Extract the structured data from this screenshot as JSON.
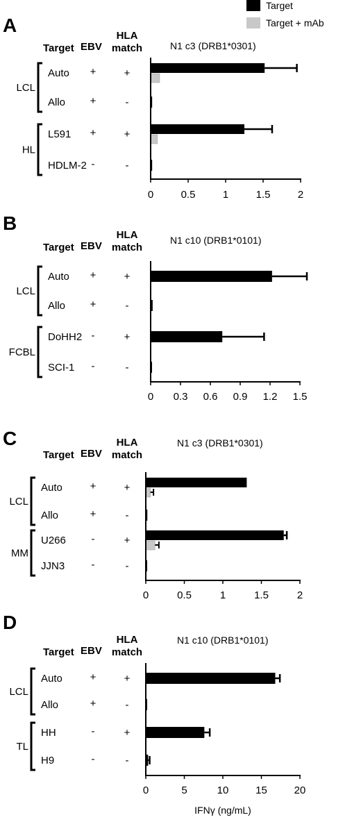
{
  "legend": {
    "items": [
      {
        "label": "Target",
        "color": "#000000"
      },
      {
        "label": "Target + mAb",
        "color": "#c8c8c8"
      }
    ]
  },
  "xlabel": "IFNγ (ng/mL)",
  "chart_data": [
    {
      "type": "bar",
      "panel": "A",
      "title": "N1 c3 (DRB1*0301)",
      "orientation": "horizontal",
      "xlim": [
        0,
        2
      ],
      "xticks": [
        "0",
        "0.5",
        "1",
        "1.5",
        "2"
      ],
      "table_headers": {
        "target": "Target",
        "ebv": "EBV",
        "hla": [
          "HLA",
          "match"
        ]
      },
      "groups": [
        {
          "label": "LCL",
          "rows": [
            {
              "target": "Auto",
              "ebv": "+",
              "hla": "+",
              "target_value": 1.52,
              "target_error": 0.43,
              "mab_value": 0.12,
              "mab_error": 0
            },
            {
              "target": "Allo",
              "ebv": "+",
              "hla": "-",
              "target_value": 0.02,
              "target_error": 0,
              "mab_value": null,
              "mab_error": null
            }
          ]
        },
        {
          "label": "HL",
          "rows": [
            {
              "target": "L591",
              "ebv": "+",
              "hla": "+",
              "target_value": 1.25,
              "target_error": 0.37,
              "mab_value": 0.09,
              "mab_error": 0
            },
            {
              "target": "HDLM-2",
              "ebv": "-",
              "hla": "-",
              "target_value": 0.02,
              "target_error": 0,
              "mab_value": null,
              "mab_error": null
            }
          ]
        }
      ],
      "series": [
        {
          "name": "Target"
        },
        {
          "name": "Target + mAb"
        }
      ]
    },
    {
      "type": "bar",
      "panel": "B",
      "title": "N1 c10 (DRB1*0101)",
      "orientation": "horizontal",
      "xlim": [
        0,
        1.5
      ],
      "xticks": [
        "0",
        "0.3",
        "0.6",
        "0.9",
        "1.2",
        "1.5"
      ],
      "table_headers": {
        "target": "Target",
        "ebv": "EBV",
        "hla": [
          "HLA",
          "match"
        ]
      },
      "groups": [
        {
          "label": "LCL",
          "rows": [
            {
              "target": "Auto",
              "ebv": "+",
              "hla": "+",
              "target_value": 1.22,
              "target_error": 0.35,
              "mab_value": null,
              "mab_error": null
            },
            {
              "target": "Allo",
              "ebv": "+",
              "hla": "-",
              "target_value": 0.02,
              "target_error": 0,
              "mab_value": null,
              "mab_error": null
            }
          ]
        },
        {
          "label": "FCBL",
          "rows": [
            {
              "target": "DoHH2",
              "ebv": "-",
              "hla": "+",
              "target_value": 0.72,
              "target_error": 0.42,
              "mab_value": null,
              "mab_error": null
            },
            {
              "target": "SCI-1",
              "ebv": "-",
              "hla": "-",
              "target_value": 0.01,
              "target_error": 0,
              "mab_value": null,
              "mab_error": null
            }
          ]
        }
      ],
      "series": [
        {
          "name": "Target"
        }
      ]
    },
    {
      "type": "bar",
      "panel": "C",
      "title": "N1 c3 (DRB1*0301)",
      "orientation": "horizontal",
      "xlim": [
        0,
        2
      ],
      "xticks": [
        "0",
        "0.5",
        "1",
        "1.5",
        "2"
      ],
      "table_headers": {
        "target": "Target",
        "ebv": "EBV",
        "hla": [
          "HLA",
          "match"
        ]
      },
      "groups": [
        {
          "label": "LCL",
          "rows": [
            {
              "target": "Auto",
              "ebv": "+",
              "hla": "+",
              "target_value": 1.31,
              "target_error": 0,
              "mab_value": 0.06,
              "mab_error": 0.04
            },
            {
              "target": "Allo",
              "ebv": "+",
              "hla": "-",
              "target_value": 0.02,
              "target_error": 0,
              "mab_value": null,
              "mab_error": null
            }
          ]
        },
        {
          "label": "MM",
          "rows": [
            {
              "target": "U266",
              "ebv": "-",
              "hla": "+",
              "target_value": 1.79,
              "target_error": 0.04,
              "mab_value": 0.12,
              "mab_error": 0.05
            },
            {
              "target": "JJN3",
              "ebv": "-",
              "hla": "-",
              "target_value": 0.01,
              "target_error": 0,
              "mab_value": null,
              "mab_error": null
            }
          ]
        }
      ],
      "series": [
        {
          "name": "Target"
        },
        {
          "name": "Target + mAb"
        }
      ]
    },
    {
      "type": "bar",
      "panel": "D",
      "title": "N1 c10 (DRB1*0101)",
      "orientation": "horizontal",
      "xlim": [
        0,
        20
      ],
      "xticks": [
        "0",
        "5",
        "10",
        "15",
        "20"
      ],
      "table_headers": {
        "target": "Target",
        "ebv": "EBV",
        "hla": [
          "HLA",
          "match"
        ]
      },
      "groups": [
        {
          "label": "LCL",
          "rows": [
            {
              "target": "Auto",
              "ebv": "+",
              "hla": "+",
              "target_value": 16.8,
              "target_error": 0.6,
              "mab_value": null,
              "mab_error": null
            },
            {
              "target": "Allo",
              "ebv": "+",
              "hla": "-",
              "target_value": 0.15,
              "target_error": 0,
              "mab_value": null,
              "mab_error": null
            }
          ]
        },
        {
          "label": "TL",
          "rows": [
            {
              "target": "HH",
              "ebv": "-",
              "hla": "+",
              "target_value": 7.6,
              "target_error": 0.7,
              "mab_value": null,
              "mab_error": null
            },
            {
              "target": "H9",
              "ebv": "-",
              "hla": "-",
              "target_value": 0.3,
              "target_error": 0.2,
              "mab_value": null,
              "mab_error": null
            }
          ]
        }
      ],
      "series": [
        {
          "name": "Target"
        }
      ]
    }
  ]
}
